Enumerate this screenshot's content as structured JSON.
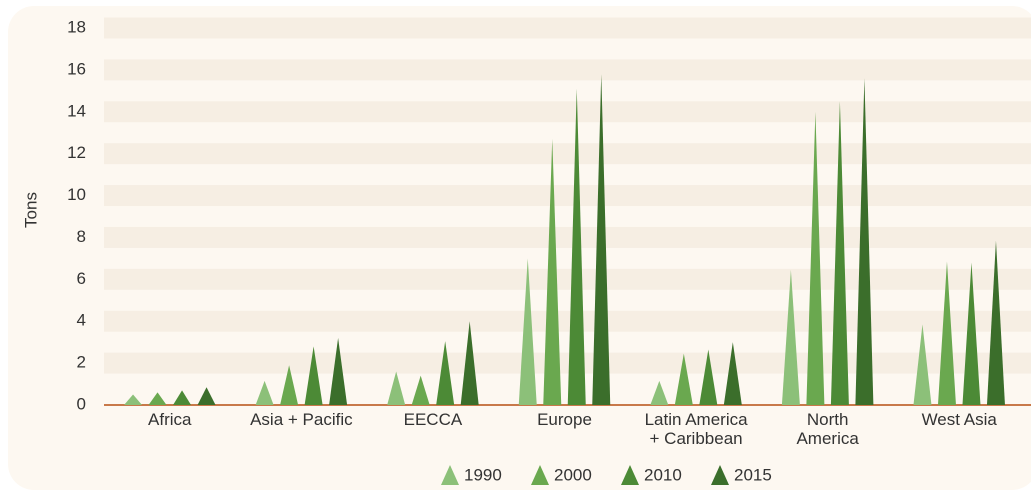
{
  "chart_data": {
    "type": "bar",
    "y_label": "Tons",
    "categories": [
      "Africa",
      "Asia + Pacific",
      "EECCA",
      "Europe",
      "Latin America\n+ Caribbean",
      "North\nAmerica",
      "West Asia"
    ],
    "series": [
      {
        "name": "1990",
        "color": "#8cc079",
        "values": [
          0.5,
          1.15,
          1.6,
          7.0,
          1.15,
          6.45,
          3.85
        ]
      },
      {
        "name": "2000",
        "color": "#6aa84f",
        "values": [
          0.6,
          1.9,
          1.4,
          12.7,
          2.45,
          14.0,
          6.85
        ]
      },
      {
        "name": "2010",
        "color": "#4c8a36",
        "values": [
          0.7,
          2.8,
          3.05,
          15.1,
          2.65,
          14.5,
          6.8
        ]
      },
      {
        "name": "2015",
        "color": "#3b6e2b",
        "values": [
          0.85,
          3.2,
          4.0,
          15.8,
          3.0,
          15.6,
          7.85
        ]
      }
    ],
    "ylim": [
      0,
      18
    ],
    "yticks": [
      0,
      2,
      4,
      6,
      8,
      10,
      12,
      14,
      16,
      18
    ],
    "grid": true
  }
}
